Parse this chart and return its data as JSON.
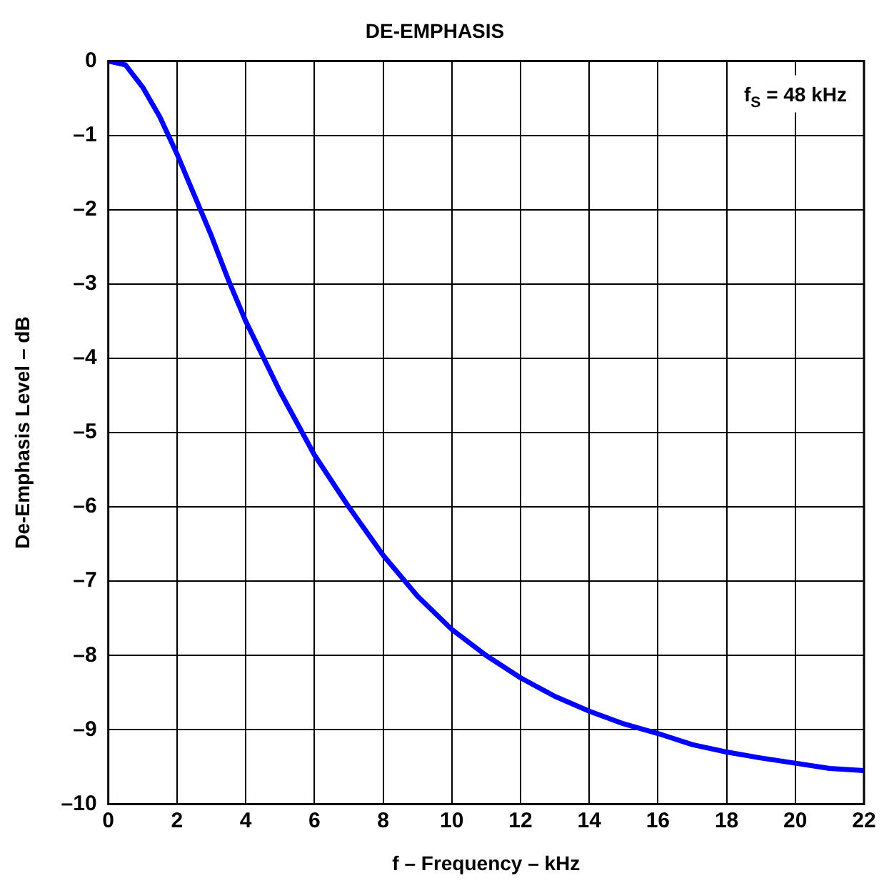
{
  "chart_data": {
    "type": "line",
    "title": "DE-EMPHASIS",
    "xlabel": "f – Frequency – kHz",
    "ylabel": "De-Emphasis Level – dB",
    "x": [
      0,
      0.5,
      1,
      1.5,
      2,
      2.5,
      3,
      3.5,
      4,
      5,
      6,
      7,
      8,
      9,
      10,
      11,
      12,
      13,
      14,
      15,
      16,
      17,
      18,
      19,
      20,
      21,
      22
    ],
    "series": [
      {
        "color": "#0000ff",
        "values": [
          0,
          -0.05,
          -0.35,
          -0.75,
          -1.25,
          -1.8,
          -2.35,
          -2.95,
          -3.5,
          -4.45,
          -5.3,
          -6.0,
          -6.65,
          -7.2,
          -7.65,
          -8.0,
          -8.3,
          -8.55,
          -8.75,
          -8.92,
          -9.05,
          -9.2,
          -9.3,
          -9.38,
          -9.45,
          -9.52,
          -9.55
        ]
      }
    ],
    "xlim": [
      0,
      22
    ],
    "xticks": [
      0,
      2,
      4,
      6,
      8,
      10,
      12,
      14,
      16,
      18,
      20,
      22
    ],
    "ylim": [
      -10,
      0
    ],
    "yticks": [
      {
        "value": -10,
        "label": "–10"
      },
      {
        "value": -9,
        "label": "–9"
      },
      {
        "value": -8,
        "label": "–8"
      },
      {
        "value": -7,
        "label": "–7"
      },
      {
        "value": -6,
        "label": "–6"
      },
      {
        "value": -5,
        "label": "–5"
      },
      {
        "value": -4,
        "label": "–4"
      },
      {
        "value": -3,
        "label": "–3"
      },
      {
        "value": -2,
        "label": "–2"
      },
      {
        "value": -1,
        "label": "–1"
      },
      0
    ],
    "annotations": [
      "f$_{S}$ = 48 kHz"
    ],
    "grid": true,
    "legend": false,
    "marker": "none",
    "line_style": "solid"
  }
}
